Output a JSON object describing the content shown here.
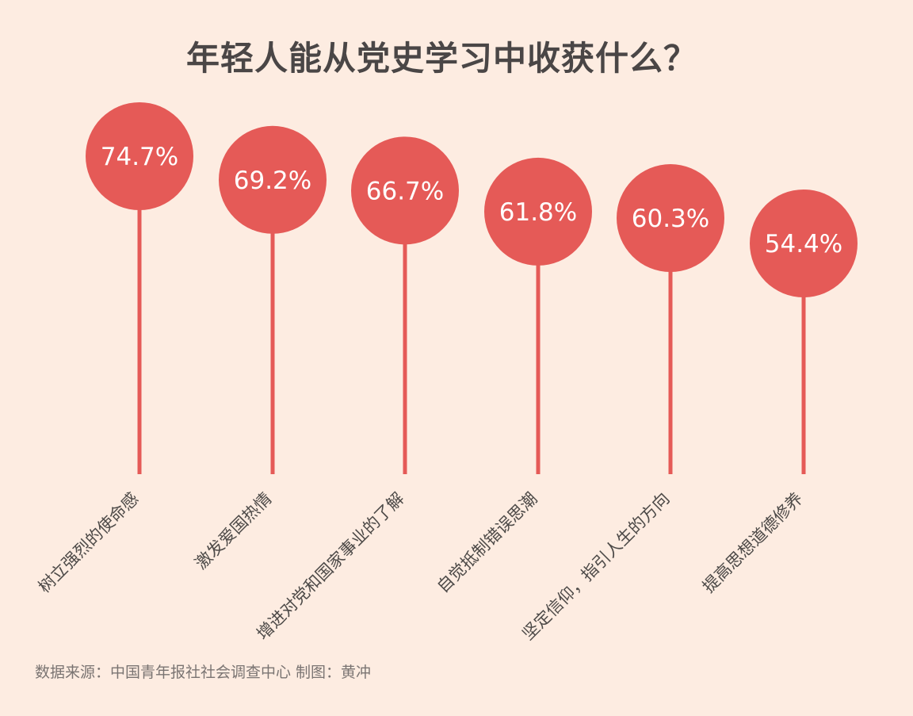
{
  "chart_data": {
    "type": "lollipop",
    "title": "年轻人能从党史学习中收获什么？",
    "categories": [
      "树立强烈的使命感",
      "激发爱国热情",
      "增进对党和国家事业的了解",
      "自觉抵制错误思潮",
      "坚定信仰，指引人生的方向",
      "提高思想道德修养"
    ],
    "values": [
      74.7,
      69.2,
      66.7,
      61.8,
      60.3,
      54.4
    ],
    "value_labels": [
      "74.7%",
      "69.2%",
      "66.7%",
      "61.8%",
      "60.3%",
      "54.4%"
    ],
    "unit": "%",
    "color": "#e55a57"
  },
  "footer": {
    "source": "数据来源：中国青年报社社会调查中心 制图：黄冲"
  }
}
